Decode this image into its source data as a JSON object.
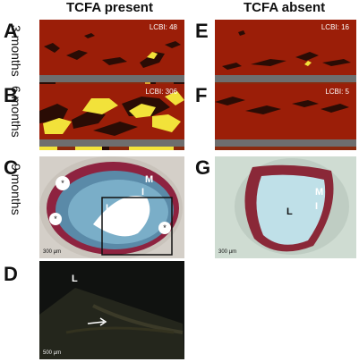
{
  "headers": {
    "left": "TCFA present",
    "right": "TCFA absent"
  },
  "row_labels": {
    "r1": "3 months",
    "r2": "6 months",
    "r3": "9 months"
  },
  "panels": {
    "A": {
      "letter": "A",
      "lcbi": "LCBI: 48"
    },
    "B": {
      "letter": "B",
      "lcbi": "LCBI: 306"
    },
    "C": {
      "letter": "C",
      "L": "L",
      "M": "M",
      "I": "I",
      "scale": "300 µm"
    },
    "D": {
      "letter": "D",
      "L": "L",
      "scale": "500 µm"
    },
    "E": {
      "letter": "E",
      "lcbi": "LCBI: 16"
    },
    "F": {
      "letter": "F",
      "lcbi": "LCBI: 5"
    },
    "G": {
      "letter": "G",
      "L": "L",
      "M": "M",
      "I": "I",
      "scale": "300 µm"
    }
  },
  "colors": {
    "chemo_red": "#9b1e08",
    "lipid_yellow": "#f2e23a",
    "dark_blob": "#2a0c05",
    "gray_bar": "#6e6e6e"
  }
}
